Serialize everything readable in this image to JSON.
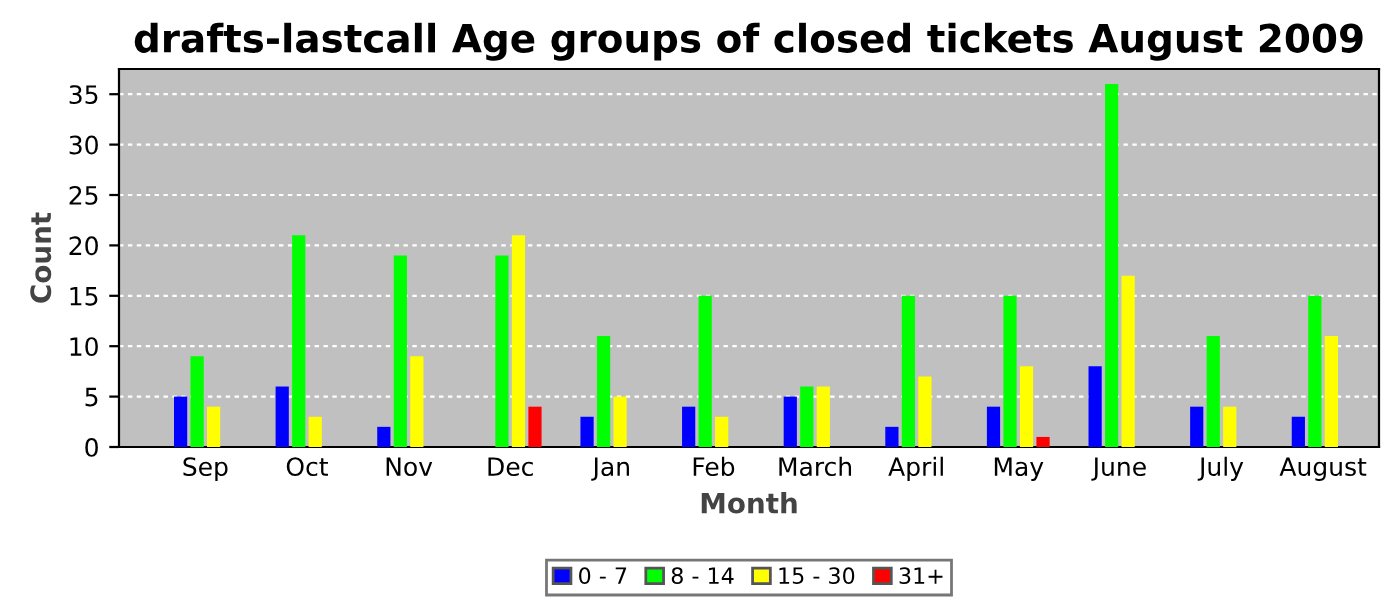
{
  "chart_data": {
    "type": "bar",
    "title": "drafts-lastcall Age groups of closed tickets August 2009",
    "xlabel": "Month",
    "ylabel": "Count",
    "categories": [
      "Sep",
      "Oct",
      "Nov",
      "Dec",
      "Jan",
      "Feb",
      "March",
      "April",
      "May",
      "June",
      "July",
      "August"
    ],
    "series": [
      {
        "name": "0 - 7",
        "color": "#0000ff",
        "values": [
          5,
          6,
          2,
          0,
          3,
          4,
          5,
          2,
          4,
          8,
          4,
          3
        ]
      },
      {
        "name": "8 - 14",
        "color": "#00ff00",
        "values": [
          9,
          21,
          19,
          19,
          11,
          15,
          6,
          15,
          15,
          36,
          11,
          15
        ]
      },
      {
        "name": "15 - 30",
        "color": "#ffff00",
        "values": [
          4,
          3,
          9,
          21,
          5,
          3,
          6,
          7,
          8,
          17,
          4,
          11
        ]
      },
      {
        "name": "31+",
        "color": "#ff0000",
        "values": [
          0,
          0,
          0,
          4,
          0,
          0,
          0,
          0,
          1,
          0,
          0,
          0
        ]
      }
    ],
    "ylim": [
      0,
      37.5
    ],
    "yticks": [
      0,
      5,
      10,
      15,
      20,
      25,
      30,
      35
    ],
    "grid": "y",
    "legend": "bottom"
  }
}
